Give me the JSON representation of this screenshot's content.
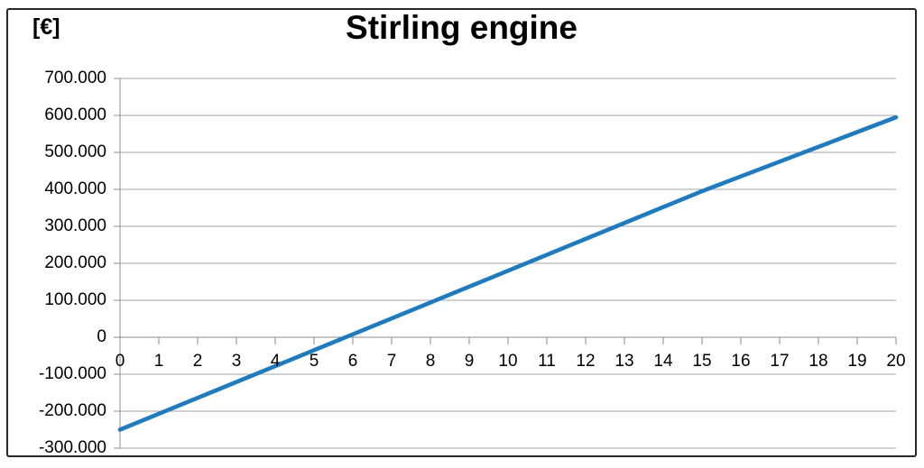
{
  "chart": {
    "title": "Stirling engine",
    "unit_label": "[€]"
  },
  "chart_data": {
    "type": "line",
    "title": "Stirling engine",
    "ylabel": "[€]",
    "xlabel": "",
    "x": [
      0,
      1,
      2,
      3,
      4,
      5,
      6,
      7,
      8,
      9,
      10,
      11,
      12,
      13,
      14,
      15,
      16,
      17,
      18,
      19,
      20
    ],
    "values": [
      -250000,
      -207000,
      -164000,
      -121000,
      -78000,
      -35000,
      8000,
      51000,
      94000,
      137000,
      180000,
      223000,
      266000,
      309000,
      352000,
      395000,
      435000,
      475000,
      515000,
      555000,
      595000
    ],
    "xlim": [
      0,
      20
    ],
    "ylim": [
      -300000,
      700000
    ],
    "ytick_values": [
      700000,
      600000,
      500000,
      400000,
      300000,
      200000,
      100000,
      0,
      -100000,
      -200000,
      -300000
    ],
    "ytick_labels": [
      "700.000",
      "600.000",
      "500.000",
      "400.000",
      "300.000",
      "200.000",
      "100.000",
      "0",
      "-100.000",
      "-200.000",
      "-300.000"
    ],
    "xtick_labels": [
      "0",
      "1",
      "2",
      "3",
      "4",
      "5",
      "6",
      "7",
      "8",
      "9",
      "10",
      "11",
      "12",
      "13",
      "14",
      "15",
      "16",
      "17",
      "18",
      "19",
      "20"
    ],
    "grid": "horizontal",
    "legend": "none",
    "colors": {
      "line": "#1F7BBD",
      "gridline": "#A6A6A6",
      "axis": "#8C8C8C",
      "text": "#000000",
      "border": "#262626"
    }
  }
}
